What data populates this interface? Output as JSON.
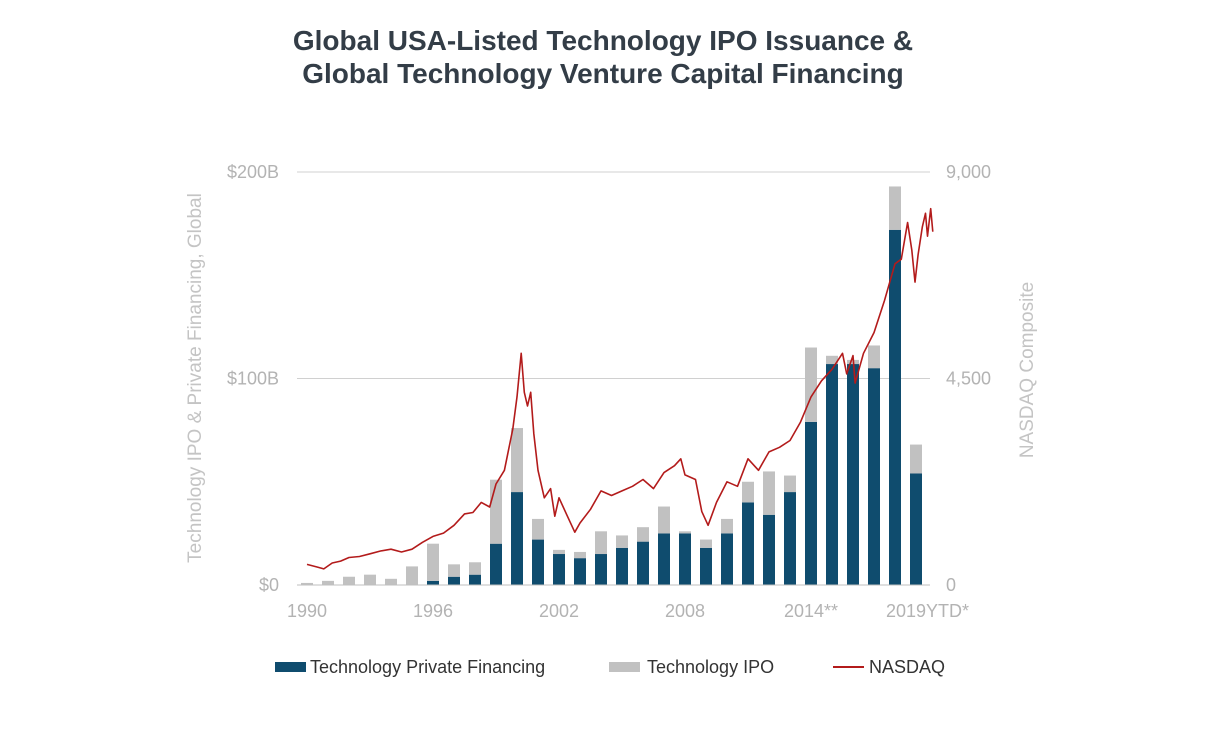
{
  "chart_data": {
    "type": "bar",
    "title": [
      "Global USA-Listed Technology IPO Issuance &",
      "Global Technology Venture Capital Financing"
    ],
    "ylabel_left": "Technology IPO & Private Financing, Global",
    "ylabel_right": "NASDAQ Composite",
    "ylim_left": [
      0,
      200
    ],
    "ylim_right": [
      0,
      9000
    ],
    "left_ticks": [
      {
        "value": 0,
        "label": "$0"
      },
      {
        "value": 100,
        "label": "$100B"
      },
      {
        "value": 200,
        "label": "$200B"
      }
    ],
    "right_ticks": [
      {
        "value": 0,
        "label": "0"
      },
      {
        "value": 4500,
        "label": "4,500"
      },
      {
        "value": 9000,
        "label": "9,000"
      }
    ],
    "x_ticks": [
      {
        "year": 1990,
        "label": "1990"
      },
      {
        "year": 1996,
        "label": "1996"
      },
      {
        "year": 2002,
        "label": "2002"
      },
      {
        "year": 2008,
        "label": "2008"
      },
      {
        "year": 2014,
        "label": "2014**"
      },
      {
        "year": 2019,
        "label": "2019YTD*"
      }
    ],
    "grid": true,
    "legend_position": "bottom",
    "years": [
      1990,
      1991,
      1992,
      1993,
      1994,
      1995,
      1996,
      1997,
      1998,
      1999,
      2000,
      2001,
      2002,
      2003,
      2004,
      2005,
      2006,
      2007,
      2008,
      2009,
      2010,
      2011,
      2012,
      2013,
      2014,
      2015,
      2016,
      2017,
      2018,
      2019
    ],
    "series": [
      {
        "name": "Technology Private Financing",
        "type": "bar",
        "color": "#0f4c6e",
        "values": [
          0,
          0,
          0,
          0,
          0,
          0,
          2,
          4,
          5,
          20,
          45,
          22,
          15,
          13,
          15,
          18,
          21,
          25,
          25,
          18,
          25,
          40,
          34,
          45,
          79,
          107,
          107,
          105,
          172,
          54
        ]
      },
      {
        "name": "Technology IPO",
        "type": "bar",
        "color": "#c1c1c1",
        "values": [
          1,
          2,
          4,
          5,
          3,
          9,
          18,
          6,
          6,
          31,
          31,
          10,
          2,
          3,
          11,
          6,
          7,
          13,
          1,
          4,
          7,
          10,
          21,
          8,
          36,
          4,
          2,
          11,
          21,
          14
        ]
      },
      {
        "name": "NASDAQ",
        "type": "line",
        "color": "#b31b1b",
        "points": [
          [
            1990.0,
            450
          ],
          [
            1990.5,
            390
          ],
          [
            1990.8,
            350
          ],
          [
            1991.2,
            480
          ],
          [
            1991.6,
            520
          ],
          [
            1992.0,
            600
          ],
          [
            1992.5,
            620
          ],
          [
            1993.0,
            680
          ],
          [
            1993.5,
            740
          ],
          [
            1994.0,
            780
          ],
          [
            1994.5,
            720
          ],
          [
            1995.0,
            780
          ],
          [
            1995.5,
            930
          ],
          [
            1996.0,
            1060
          ],
          [
            1996.5,
            1130
          ],
          [
            1997.0,
            1300
          ],
          [
            1997.5,
            1550
          ],
          [
            1997.9,
            1580
          ],
          [
            1998.3,
            1800
          ],
          [
            1998.7,
            1700
          ],
          [
            1999.0,
            2200
          ],
          [
            1999.4,
            2500
          ],
          [
            1999.8,
            3400
          ],
          [
            2000.0,
            4100
          ],
          [
            2000.2,
            5050
          ],
          [
            2000.35,
            4200
          ],
          [
            2000.5,
            3900
          ],
          [
            2000.65,
            4200
          ],
          [
            2000.8,
            3300
          ],
          [
            2001.0,
            2500
          ],
          [
            2001.3,
            1900
          ],
          [
            2001.6,
            2100
          ],
          [
            2001.8,
            1500
          ],
          [
            2002.0,
            1900
          ],
          [
            2002.4,
            1500
          ],
          [
            2002.75,
            1150
          ],
          [
            2003.0,
            1350
          ],
          [
            2003.5,
            1650
          ],
          [
            2004.0,
            2050
          ],
          [
            2004.5,
            1950
          ],
          [
            2005.0,
            2050
          ],
          [
            2005.5,
            2150
          ],
          [
            2006.0,
            2300
          ],
          [
            2006.5,
            2100
          ],
          [
            2007.0,
            2450
          ],
          [
            2007.5,
            2600
          ],
          [
            2007.8,
            2750
          ],
          [
            2008.0,
            2400
          ],
          [
            2008.5,
            2300
          ],
          [
            2008.8,
            1600
          ],
          [
            2009.1,
            1300
          ],
          [
            2009.5,
            1800
          ],
          [
            2010.0,
            2250
          ],
          [
            2010.5,
            2150
          ],
          [
            2011.0,
            2750
          ],
          [
            2011.5,
            2500
          ],
          [
            2012.0,
            2900
          ],
          [
            2012.5,
            3000
          ],
          [
            2013.0,
            3150
          ],
          [
            2013.5,
            3550
          ],
          [
            2014.0,
            4100
          ],
          [
            2014.5,
            4450
          ],
          [
            2015.0,
            4700
          ],
          [
            2015.5,
            5050
          ],
          [
            2015.7,
            4600
          ],
          [
            2016.0,
            5000
          ],
          [
            2016.1,
            4400
          ],
          [
            2016.5,
            5050
          ],
          [
            2017.0,
            5500
          ],
          [
            2017.5,
            6200
          ],
          [
            2018.0,
            7000
          ],
          [
            2018.3,
            7100
          ],
          [
            2018.6,
            7900
          ],
          [
            2018.8,
            7300
          ],
          [
            2018.95,
            6600
          ],
          [
            2019.1,
            7200
          ],
          [
            2019.3,
            7800
          ],
          [
            2019.45,
            8100
          ],
          [
            2019.55,
            7600
          ],
          [
            2019.7,
            8200
          ],
          [
            2019.8,
            7700
          ]
        ]
      }
    ]
  }
}
